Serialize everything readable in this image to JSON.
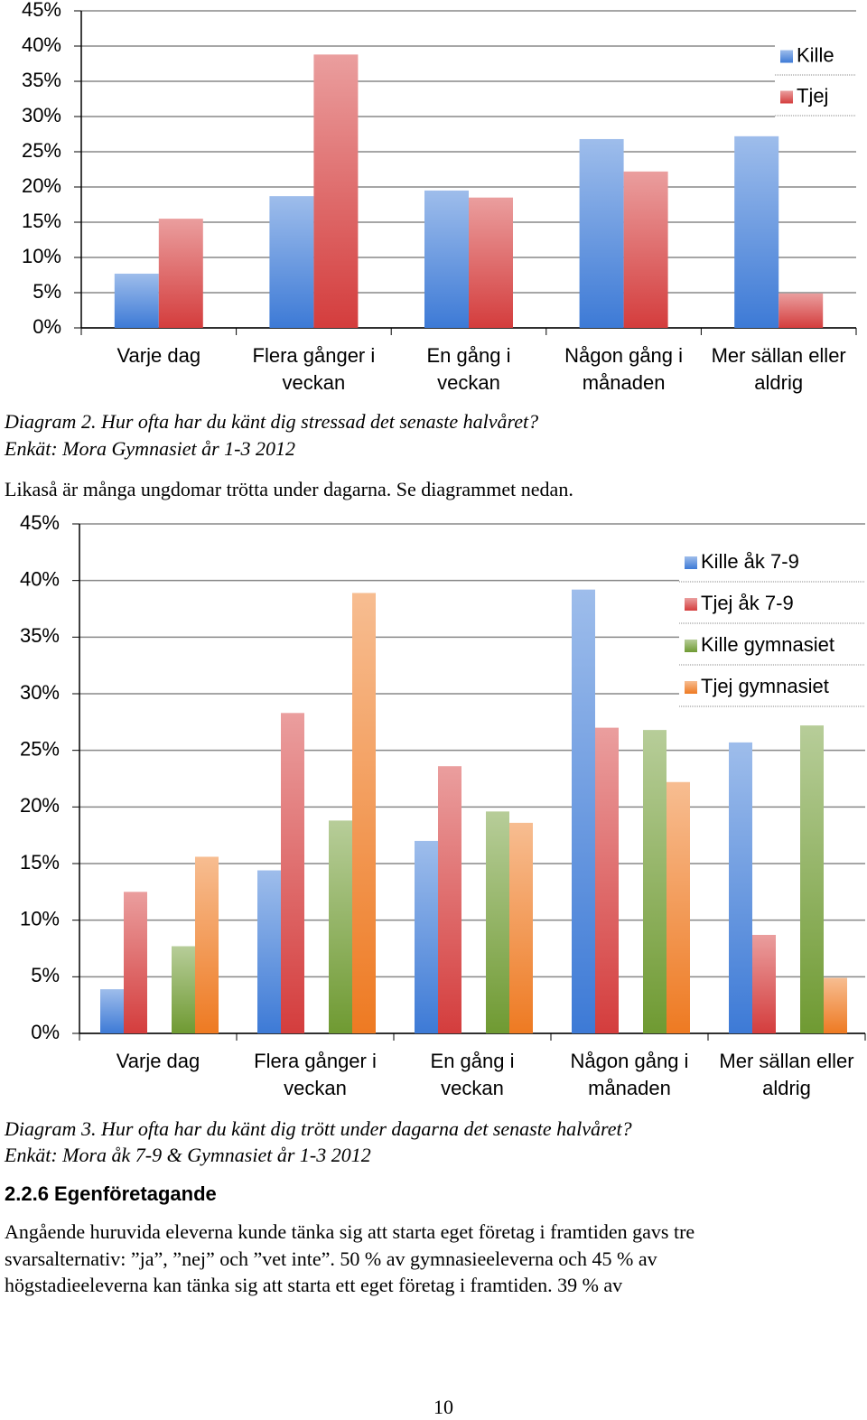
{
  "chart_data": [
    {
      "type": "bar",
      "categories": [
        "Varje dag",
        "Flera gånger i veckan",
        "En gång i veckan",
        "Någon gång i månaden",
        "Mer sällan eller aldrig"
      ],
      "series": [
        {
          "name": "Kille",
          "color": "#3d7ad6",
          "values": [
            7.7,
            18.7,
            19.5,
            26.8,
            27.2
          ]
        },
        {
          "name": "Tjej",
          "color": "#d43d3d",
          "values": [
            15.5,
            38.8,
            18.5,
            22.2,
            4.9
          ]
        }
      ],
      "ylim": [
        0,
        45
      ],
      "yticks": [
        {
          "value": 0,
          "label": "0%"
        },
        {
          "value": 5,
          "label": "5%"
        },
        {
          "value": 10,
          "label": "10%"
        },
        {
          "value": 15,
          "label": "15%"
        },
        {
          "value": 20,
          "label": "20%"
        },
        {
          "value": 25,
          "label": "25%"
        },
        {
          "value": 30,
          "label": "30%"
        },
        {
          "value": 35,
          "label": "35%"
        },
        {
          "value": 40,
          "label": "40%"
        },
        {
          "value": 45,
          "label": "45%"
        }
      ],
      "grid": true,
      "legend": "top-right"
    },
    {
      "type": "bar",
      "categories": [
        "Varje dag",
        "Flera gånger i veckan",
        "En gång i veckan",
        "Någon gång i månaden",
        "Mer sällan eller aldrig"
      ],
      "series": [
        {
          "name": "Kille åk 7-9",
          "color": "#3d7ad6",
          "values": [
            3.9,
            14.4,
            17.0,
            39.2,
            25.7
          ]
        },
        {
          "name": "Tjej åk 7-9",
          "color": "#d43d3d",
          "values": [
            12.5,
            28.3,
            23.6,
            27.0,
            8.7
          ]
        },
        {
          "name": "Kille gymnasiet",
          "color": "#6f9a32",
          "values": [
            7.7,
            18.8,
            19.6,
            26.8,
            27.2
          ]
        },
        {
          "name": "Tjej gymnasiet",
          "color": "#ee7a22",
          "values": [
            15.6,
            38.9,
            18.6,
            22.2,
            4.9
          ]
        }
      ],
      "ylim": [
        0,
        45
      ],
      "yticks": [
        {
          "value": 0,
          "label": "0%"
        },
        {
          "value": 5,
          "label": "5%"
        },
        {
          "value": 10,
          "label": "10%"
        },
        {
          "value": 15,
          "label": "15%"
        },
        {
          "value": 20,
          "label": "20%"
        },
        {
          "value": 25,
          "label": "25%"
        },
        {
          "value": 30,
          "label": "30%"
        },
        {
          "value": 35,
          "label": "35%"
        },
        {
          "value": 40,
          "label": "40%"
        },
        {
          "value": 45,
          "label": "45%"
        }
      ],
      "grid": true,
      "legend": "top-right"
    }
  ],
  "document": {
    "diagram_2_caption": [
      "Diagram 2. Hur ofta har du känt dig stressad det senaste halvåret?",
      "Enkät: Mora Gymnasiet år 1-3 2012"
    ],
    "intro": "Likaså är många ungdomar trötta under dagarna. Se diagrammet nedan.",
    "diagram_3_caption": [
      "Diagram 3. Hur ofta har du känt dig trött under dagarna det senaste halvåret?",
      "Enkät: Mora åk 7-9 & Gymnasiet år 1-3 2012"
    ],
    "heading": "2.2.6 Egenföretagande",
    "paragraph": [
      "Angående huruvida eleverna kunde tänka sig att starta eget företag i framtiden gavs tre",
      "svarsalternativ: ”ja”, ”nej” och ”vet inte”. 50 % av gymnasieeleverna och 45 % av",
      "högstadieeleverna kan tänka sig att starta ett eget företag i framtiden. 39 % av"
    ],
    "page_number": "10"
  }
}
